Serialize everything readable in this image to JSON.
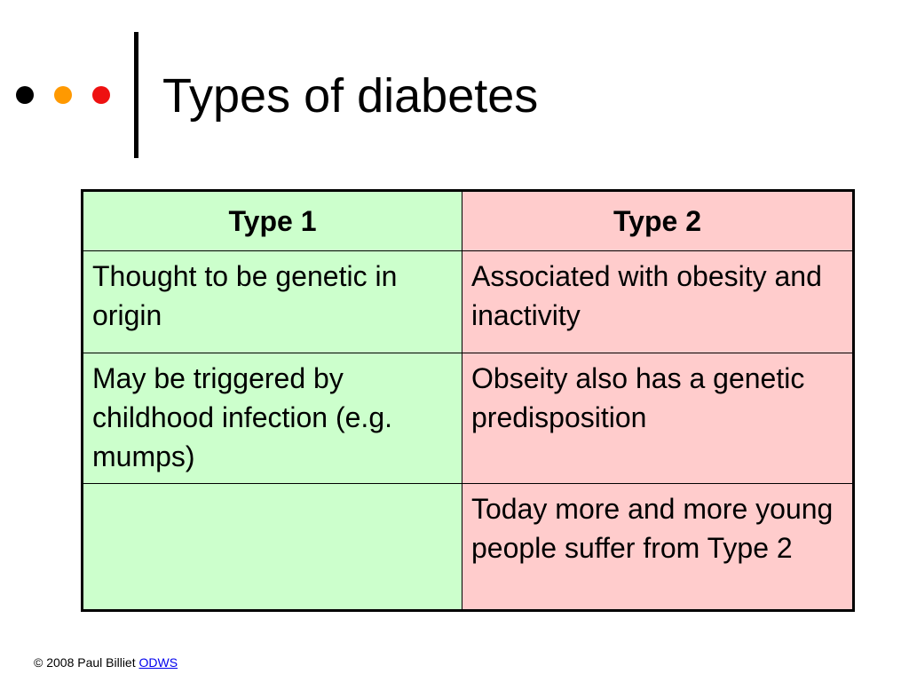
{
  "slide": {
    "title": "Types of diabetes",
    "bullet_colors": [
      "#000000",
      "#ff9900",
      "#ee1111"
    ]
  },
  "table": {
    "headers": [
      "Type 1",
      "Type 2"
    ],
    "rows": [
      [
        "Thought to be genetic in origin",
        "Associated with obesity and inactivity"
      ],
      [
        "May be triggered by childhood infection (e.g. mumps)",
        "Obseity also has a genetic predisposition"
      ],
      [
        "",
        "Today more and more young people suffer from Type 2"
      ]
    ],
    "column_colors": [
      "#ccffcc",
      "#ffcccc"
    ]
  },
  "footer": {
    "copyright": "© 2008 Paul Billiet",
    "link_text": "ODWS"
  }
}
